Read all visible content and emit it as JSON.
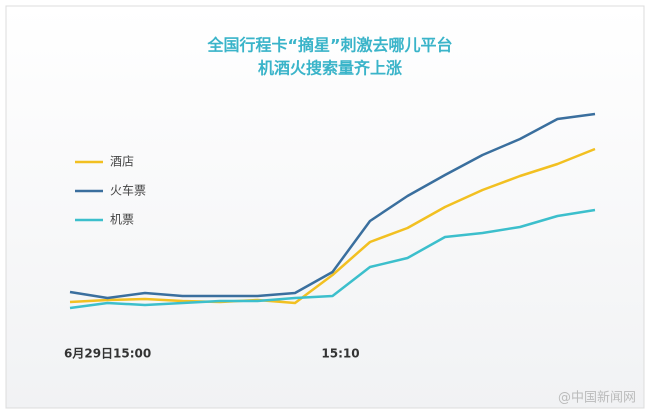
{
  "chart_data": {
    "type": "line",
    "title": "全国行程卡“摘星”刺激去哪儿平台",
    "subtitle": "机酒火搜索量齐上涨",
    "categories": [
      "6月29日15:00",
      null,
      null,
      null,
      null,
      null,
      null,
      "15:10",
      null,
      null,
      null,
      null,
      null,
      null,
      null
    ],
    "series": [
      {
        "name": "酒店",
        "color": "#f2c021",
        "values": [
          18,
          20,
          21,
          19,
          18,
          20,
          17,
          45,
          78,
          92,
          113,
          130,
          144,
          156,
          171
        ]
      },
      {
        "name": "火车票",
        "color": "#3a6f9e",
        "values": [
          28,
          22,
          27,
          24,
          24,
          24,
          27,
          48,
          99,
          124,
          145,
          165,
          181,
          201,
          206
        ]
      },
      {
        "name": "机票",
        "color": "#3cbfcc",
        "values": [
          12,
          17,
          15,
          17,
          19,
          19,
          22,
          24,
          53,
          62,
          83,
          87,
          93,
          104,
          110
        ]
      }
    ],
    "watermark": "@中国新闻网"
  }
}
